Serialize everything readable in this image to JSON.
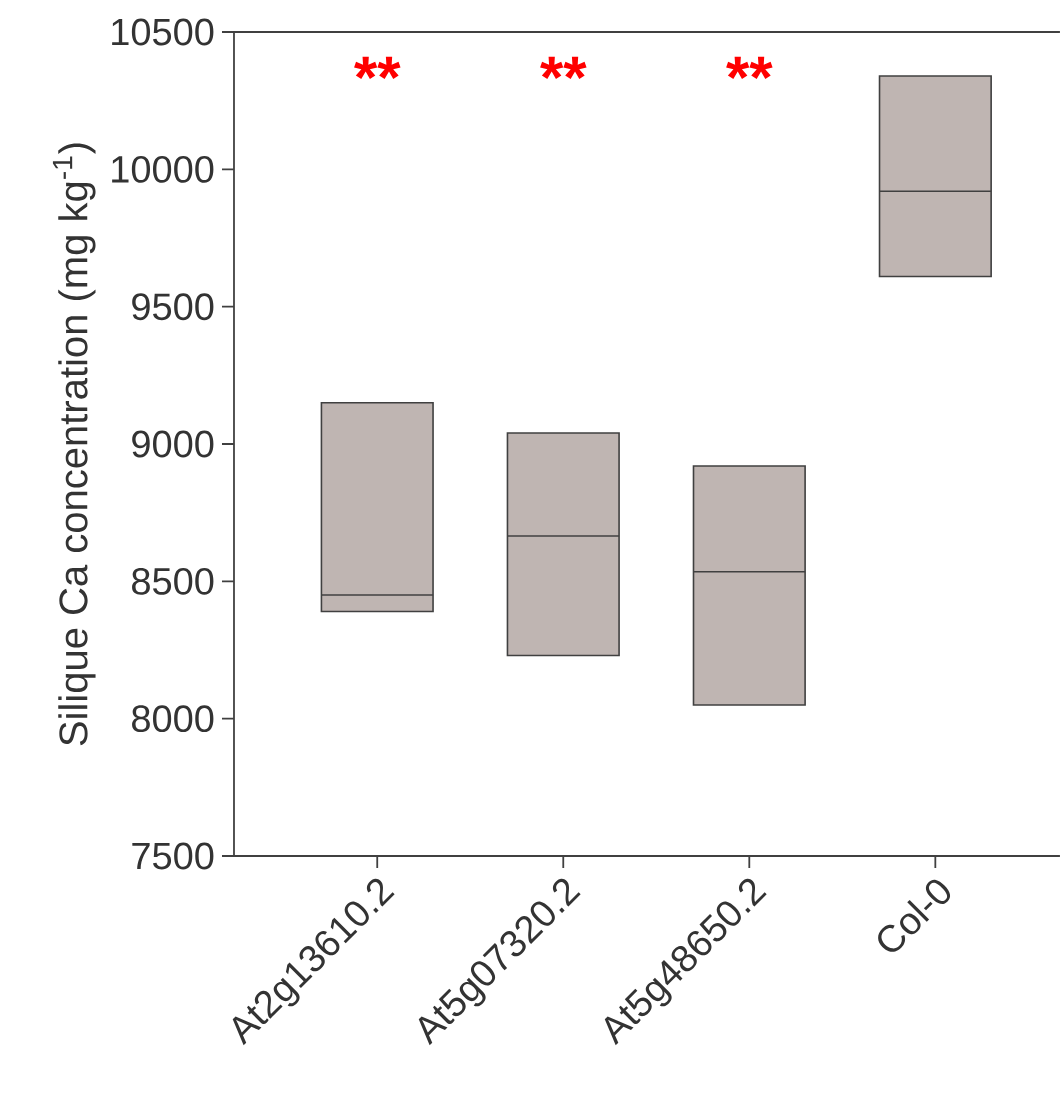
{
  "chart_data": {
    "type": "box",
    "ylabel": "Silique Ca concentration (mg kg$^{-1}$)",
    "categories": [
      "At2g13610.2",
      "At5g07320.2",
      "At5g48650.2",
      "Col-0"
    ],
    "color": "#bfb5b2",
    "boxes": [
      {
        "low": 8390,
        "q1": 8390,
        "median": 8450,
        "q3": 9150,
        "high": 9150
      },
      {
        "low": 8230,
        "q1": 8230,
        "median": 8665,
        "q3": 9040,
        "high": 9040
      },
      {
        "low": 8050,
        "q1": 8050,
        "median": 8535,
        "q3": 8920,
        "high": 8920
      },
      {
        "low": 9610,
        "q1": 9610,
        "median": 9920,
        "q3": 10340,
        "high": 10340
      }
    ],
    "ylim": [
      7500,
      10500
    ],
    "yticks": [
      7500,
      8000,
      8500,
      9000,
      9500,
      10000,
      10500
    ],
    "annotations": [
      "**",
      "**",
      "**"
    ]
  }
}
